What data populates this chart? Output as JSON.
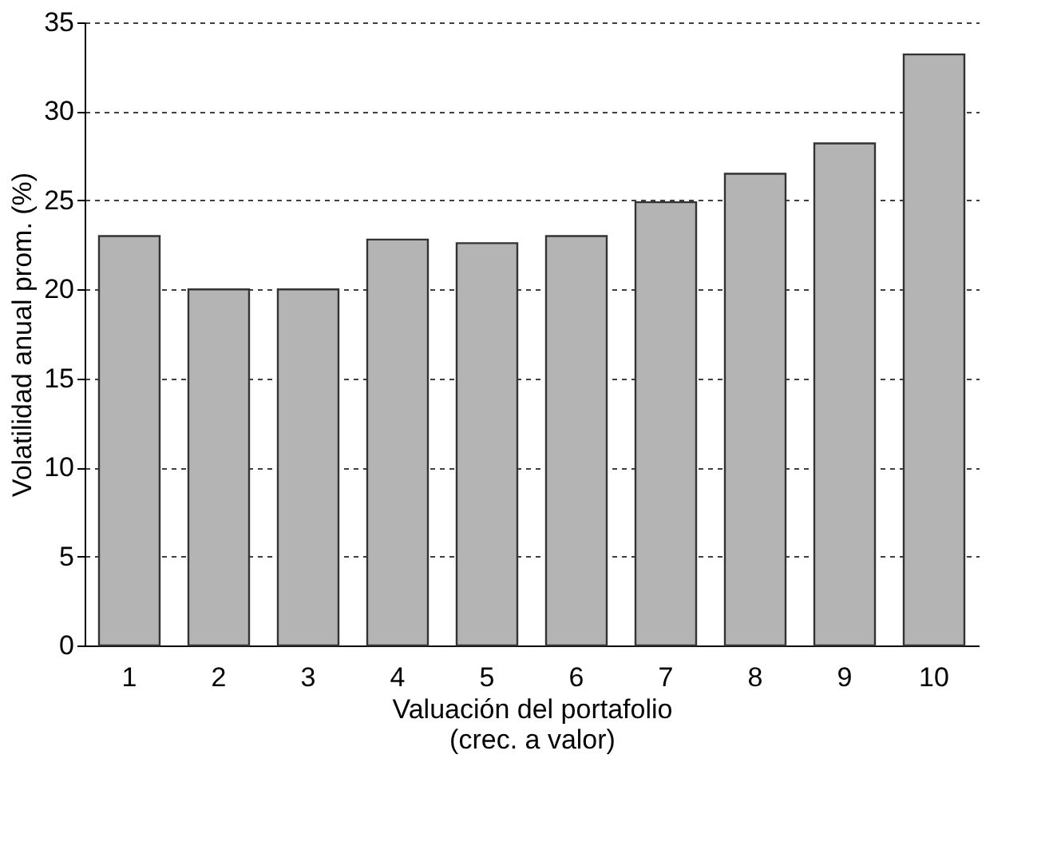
{
  "chart_data": {
    "type": "bar",
    "categories": [
      "1",
      "2",
      "3",
      "4",
      "5",
      "6",
      "7",
      "8",
      "9",
      "10"
    ],
    "values": [
      23.0,
      20.0,
      20.0,
      22.8,
      22.6,
      23.0,
      24.9,
      26.5,
      28.2,
      33.2
    ],
    "color": "#b4b4b4",
    "xlabel": "Valuación del portafolio\n(crec. a valor)",
    "ylabel": "Volatilidad anual prom. (%)",
    "ylim": [
      0,
      35
    ],
    "yticks": [
      0,
      5,
      10,
      15,
      20,
      25,
      30,
      35
    ],
    "grid": "y"
  }
}
